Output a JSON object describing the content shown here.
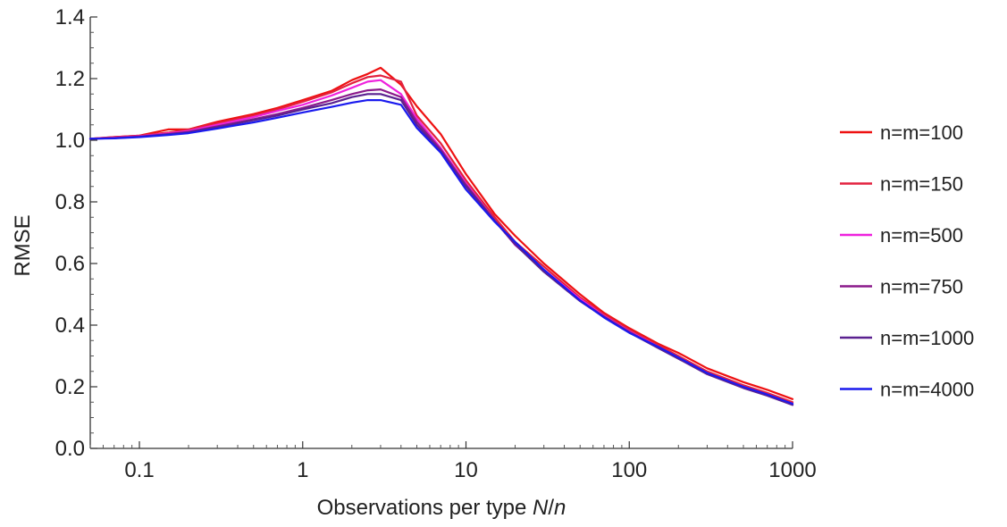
{
  "chart_data": {
    "type": "line",
    "x_scale": "log",
    "xlabel": {
      "prefix": "Observations per type ",
      "var1": "N",
      "sep": "/",
      "var2": "n"
    },
    "ylabel": "RMSE",
    "xlim": [
      0.05,
      1000
    ],
    "ylim": [
      0.0,
      1.4
    ],
    "x_ticks": [
      {
        "value": 0.1,
        "label": "0.1"
      },
      {
        "value": 1,
        "label": "1"
      },
      {
        "value": 10,
        "label": "10"
      },
      {
        "value": 100,
        "label": "100"
      },
      {
        "value": 1000,
        "label": "1000"
      }
    ],
    "y_ticks": [
      {
        "value": 0.0,
        "label": "0.0"
      },
      {
        "value": 0.2,
        "label": "0.2"
      },
      {
        "value": 0.4,
        "label": "0.4"
      },
      {
        "value": 0.6,
        "label": "0.6"
      },
      {
        "value": 0.8,
        "label": "0.8"
      },
      {
        "value": 1.0,
        "label": "1.0"
      },
      {
        "value": 1.2,
        "label": "1.2"
      },
      {
        "value": 1.4,
        "label": "1.4"
      }
    ],
    "grid": false,
    "legend_position": "right",
    "x": [
      0.05,
      0.07,
      0.1,
      0.15,
      0.2,
      0.3,
      0.5,
      0.7,
      1,
      1.5,
      2,
      2.5,
      3,
      4,
      5,
      7,
      10,
      15,
      20,
      30,
      50,
      70,
      100,
      150,
      200,
      300,
      500,
      700,
      1000
    ],
    "series": [
      {
        "name": "n=m=100",
        "color": "#ee1111",
        "values": [
          1.005,
          1.01,
          1.015,
          1.035,
          1.035,
          1.06,
          1.085,
          1.105,
          1.13,
          1.16,
          1.195,
          1.215,
          1.235,
          1.18,
          1.11,
          1.02,
          0.89,
          0.76,
          0.69,
          0.6,
          0.5,
          0.44,
          0.39,
          0.34,
          0.31,
          0.26,
          0.215,
          0.19,
          0.16
        ]
      },
      {
        "name": "n=m=150",
        "color": "#e3213f",
        "values": [
          1.005,
          1.01,
          1.015,
          1.025,
          1.035,
          1.055,
          1.08,
          1.1,
          1.125,
          1.155,
          1.185,
          1.205,
          1.21,
          1.19,
          1.08,
          0.99,
          0.87,
          0.75,
          0.67,
          0.59,
          0.49,
          0.435,
          0.385,
          0.335,
          0.3,
          0.25,
          0.205,
          0.18,
          0.15
        ]
      },
      {
        "name": "n=m=500",
        "color": "#ee22dd",
        "values": [
          1.005,
          1.008,
          1.013,
          1.022,
          1.03,
          1.05,
          1.075,
          1.095,
          1.115,
          1.145,
          1.17,
          1.19,
          1.195,
          1.15,
          1.07,
          0.975,
          0.86,
          0.74,
          0.66,
          0.58,
          0.485,
          0.43,
          0.38,
          0.33,
          0.295,
          0.245,
          0.2,
          0.175,
          0.145
        ]
      },
      {
        "name": "n=m=750",
        "color": "#8b1a8b",
        "values": [
          1.005,
          1.007,
          1.012,
          1.02,
          1.027,
          1.045,
          1.068,
          1.085,
          1.105,
          1.13,
          1.15,
          1.162,
          1.165,
          1.14,
          1.06,
          0.97,
          0.855,
          0.74,
          0.665,
          0.575,
          0.48,
          0.428,
          0.378,
          0.328,
          0.293,
          0.243,
          0.198,
          0.173,
          0.143
        ]
      },
      {
        "name": "n=m=1000",
        "color": "#5a2190",
        "values": [
          1.005,
          1.007,
          1.011,
          1.019,
          1.026,
          1.042,
          1.065,
          1.08,
          1.1,
          1.12,
          1.14,
          1.15,
          1.15,
          1.13,
          1.05,
          0.965,
          0.85,
          0.738,
          0.662,
          0.573,
          0.478,
          0.426,
          0.376,
          0.326,
          0.291,
          0.241,
          0.196,
          0.171,
          0.141
        ]
      },
      {
        "name": "n=m=4000",
        "color": "#1a1aee",
        "values": [
          1.005,
          1.006,
          1.01,
          1.017,
          1.023,
          1.038,
          1.058,
          1.073,
          1.09,
          1.108,
          1.122,
          1.13,
          1.13,
          1.115,
          1.04,
          0.96,
          0.84,
          0.735,
          0.67,
          0.58,
          0.48,
          0.425,
          0.375,
          0.33,
          0.295,
          0.245,
          0.2,
          0.175,
          0.145
        ]
      }
    ]
  }
}
